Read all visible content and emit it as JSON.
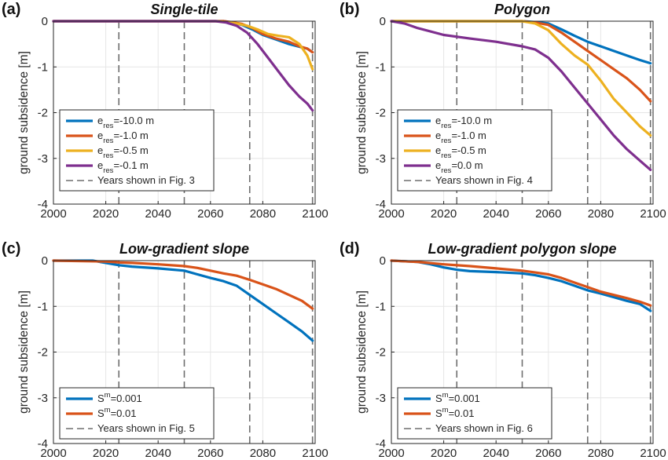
{
  "chart_data": [
    {
      "type": "line",
      "panel_label": "(a)",
      "title": "Single-tile",
      "ylabel": "ground subsidence [m]",
      "xlim": [
        2000,
        2100
      ],
      "ylim": [
        -4,
        0
      ],
      "xticks": [
        "2000",
        "2020",
        "2040",
        "2060",
        "2080",
        "2100"
      ],
      "yticks": [
        "0",
        "-1",
        "-2",
        "-3",
        "-4"
      ],
      "grid": true,
      "legend_position": "bottom-left",
      "vlines": [
        2025,
        2050,
        2075,
        2099
      ],
      "vline_legend": "Years shown in Fig. 3",
      "series": [
        {
          "legend_main": "e",
          "legend_sub": "res",
          "legend_val": "=-10.0 m",
          "color": "#0072BD",
          "x": [
            2000,
            2060,
            2065,
            2068,
            2072,
            2076,
            2080,
            2085,
            2090,
            2094,
            2097,
            2099
          ],
          "y": [
            0,
            0,
            0,
            -0.03,
            -0.08,
            -0.18,
            -0.3,
            -0.4,
            -0.5,
            -0.56,
            -0.6,
            -0.68
          ]
        },
        {
          "legend_main": "e",
          "legend_sub": "res",
          "legend_val": "=-1.0 m",
          "color": "#D95319",
          "x": [
            2000,
            2060,
            2065,
            2068,
            2072,
            2076,
            2080,
            2085,
            2090,
            2094,
            2097,
            2099
          ],
          "y": [
            0,
            0,
            0,
            -0.02,
            -0.06,
            -0.15,
            -0.28,
            -0.38,
            -0.45,
            -0.55,
            -0.6,
            -0.68
          ]
        },
        {
          "legend_main": "e",
          "legend_sub": "res",
          "legend_val": "=-0.5 m",
          "color": "#EDB120",
          "x": [
            2000,
            2062,
            2066,
            2070,
            2074,
            2078,
            2082,
            2086,
            2090,
            2094,
            2097,
            2099
          ],
          "y": [
            0,
            0,
            -0.02,
            -0.05,
            -0.1,
            -0.18,
            -0.28,
            -0.32,
            -0.35,
            -0.5,
            -0.75,
            -1.05
          ]
        },
        {
          "legend_main": "e",
          "legend_sub": "res",
          "legend_val": "=-0.1 m",
          "color": "#7E2F8E",
          "x": [
            2000,
            2062,
            2066,
            2070,
            2074,
            2078,
            2082,
            2086,
            2090,
            2094,
            2097,
            2099
          ],
          "y": [
            0,
            0,
            -0.03,
            -0.1,
            -0.25,
            -0.5,
            -0.8,
            -1.1,
            -1.4,
            -1.65,
            -1.8,
            -1.95
          ]
        }
      ]
    },
    {
      "type": "line",
      "panel_label": "(b)",
      "title": "Polygon",
      "ylabel": "ground subsidence [m]",
      "xlim": [
        2000,
        2100
      ],
      "ylim": [
        -4,
        0
      ],
      "xticks": [
        "2000",
        "2020",
        "2040",
        "2060",
        "2080",
        "2100"
      ],
      "yticks": [
        "0",
        "-1",
        "-2",
        "-3",
        "-4"
      ],
      "grid": true,
      "legend_position": "bottom-left",
      "vlines": [
        2025,
        2050,
        2075,
        2099
      ],
      "vline_legend": "Years shown in Fig. 4",
      "series": [
        {
          "legend_main": "e",
          "legend_sub": "res",
          "legend_val": "=-10.0 m",
          "color": "#0072BD",
          "x": [
            2000,
            2050,
            2055,
            2060,
            2065,
            2070,
            2075,
            2080,
            2085,
            2090,
            2095,
            2099
          ],
          "y": [
            0,
            0,
            -0.02,
            -0.05,
            -0.18,
            -0.32,
            -0.45,
            -0.55,
            -0.65,
            -0.75,
            -0.85,
            -0.92
          ]
        },
        {
          "legend_main": "e",
          "legend_sub": "res",
          "legend_val": "=-1.0 m",
          "color": "#D95319",
          "x": [
            2000,
            2050,
            2055,
            2060,
            2065,
            2070,
            2075,
            2080,
            2085,
            2090,
            2095,
            2099
          ],
          "y": [
            0,
            0,
            -0.03,
            -0.08,
            -0.25,
            -0.45,
            -0.65,
            -0.85,
            -1.05,
            -1.25,
            -1.5,
            -1.75
          ]
        },
        {
          "legend_main": "e",
          "legend_sub": "res",
          "legend_val": "=-0.5 m",
          "color": "#EDB120",
          "x": [
            2000,
            2050,
            2055,
            2060,
            2065,
            2070,
            2075,
            2080,
            2085,
            2090,
            2095,
            2099
          ],
          "y": [
            0,
            0,
            -0.05,
            -0.2,
            -0.5,
            -0.75,
            -0.95,
            -1.3,
            -1.7,
            -2.0,
            -2.3,
            -2.5
          ]
        },
        {
          "legend_main": "e",
          "legend_sub": "res",
          "legend_val": "=0.0 m",
          "color": "#7E2F8E",
          "x": [
            2000,
            2005,
            2010,
            2020,
            2030,
            2040,
            2050,
            2055,
            2060,
            2065,
            2070,
            2075,
            2080,
            2085,
            2090,
            2095,
            2099
          ],
          "y": [
            0,
            -0.05,
            -0.15,
            -0.3,
            -0.38,
            -0.45,
            -0.55,
            -0.62,
            -0.8,
            -1.1,
            -1.45,
            -1.8,
            -2.15,
            -2.5,
            -2.8,
            -3.05,
            -3.25
          ]
        }
      ]
    },
    {
      "type": "line",
      "panel_label": "(c)",
      "title": "Low-gradient slope",
      "ylabel": "ground subsidence [m]",
      "xlim": [
        2000,
        2100
      ],
      "ylim": [
        -4,
        0
      ],
      "xticks": [
        "2000",
        "2020",
        "2040",
        "2060",
        "2080",
        "2100"
      ],
      "yticks": [
        "0",
        "-1",
        "-2",
        "-3",
        "-4"
      ],
      "grid": true,
      "legend_position": "bottom-left",
      "vlines": [
        2025,
        2050,
        2075,
        2099
      ],
      "vline_legend": "Years shown in Fig. 5",
      "series": [
        {
          "legend_main": "S",
          "legend_sup": "m",
          "legend_val": "=0.001",
          "color": "#0072BD",
          "x": [
            2000,
            2015,
            2020,
            2025,
            2030,
            2040,
            2050,
            2055,
            2060,
            2065,
            2070,
            2075,
            2080,
            2085,
            2090,
            2095,
            2099
          ],
          "y": [
            0,
            0,
            -0.05,
            -0.1,
            -0.13,
            -0.17,
            -0.22,
            -0.3,
            -0.38,
            -0.45,
            -0.55,
            -0.75,
            -0.95,
            -1.15,
            -1.35,
            -1.55,
            -1.75
          ]
        },
        {
          "legend_main": "S",
          "legend_sup": "m",
          "legend_val": "=0.01",
          "color": "#D95319",
          "x": [
            2000,
            2020,
            2025,
            2030,
            2040,
            2050,
            2055,
            2060,
            2065,
            2070,
            2075,
            2080,
            2085,
            2090,
            2095,
            2099
          ],
          "y": [
            0,
            -0.02,
            -0.04,
            -0.05,
            -0.08,
            -0.12,
            -0.16,
            -0.22,
            -0.28,
            -0.33,
            -0.42,
            -0.52,
            -0.62,
            -0.75,
            -0.88,
            -1.05
          ]
        }
      ]
    },
    {
      "type": "line",
      "panel_label": "(d)",
      "title": "Low-gradient polygon slope",
      "ylabel": "ground subsidence [m]",
      "xlim": [
        2000,
        2100
      ],
      "ylim": [
        -4,
        0
      ],
      "xticks": [
        "2000",
        "2020",
        "2040",
        "2060",
        "2080",
        "2100"
      ],
      "yticks": [
        "0",
        "-1",
        "-2",
        "-3",
        "-4"
      ],
      "grid": true,
      "legend_position": "bottom-left",
      "vlines": [
        2025,
        2050,
        2075,
        2099
      ],
      "vline_legend": "Years shown in Fig. 6",
      "series": [
        {
          "legend_main": "S",
          "legend_sup": "m",
          "legend_val": "=0.001",
          "color": "#0072BD",
          "x": [
            2000,
            2010,
            2015,
            2020,
            2025,
            2030,
            2040,
            2050,
            2055,
            2060,
            2065,
            2070,
            2075,
            2080,
            2085,
            2090,
            2095,
            2099
          ],
          "y": [
            0,
            -0.03,
            -0.08,
            -0.15,
            -0.2,
            -0.23,
            -0.25,
            -0.28,
            -0.32,
            -0.38,
            -0.45,
            -0.55,
            -0.65,
            -0.72,
            -0.8,
            -0.88,
            -0.95,
            -1.1
          ]
        },
        {
          "legend_main": "S",
          "legend_sup": "m",
          "legend_val": "=0.01",
          "color": "#D95319",
          "x": [
            2000,
            2010,
            2020,
            2030,
            2040,
            2050,
            2055,
            2060,
            2065,
            2070,
            2075,
            2080,
            2085,
            2090,
            2095,
            2099
          ],
          "y": [
            0,
            -0.03,
            -0.08,
            -0.12,
            -0.17,
            -0.22,
            -0.26,
            -0.3,
            -0.38,
            -0.48,
            -0.58,
            -0.68,
            -0.75,
            -0.82,
            -0.9,
            -0.98
          ]
        }
      ]
    }
  ]
}
